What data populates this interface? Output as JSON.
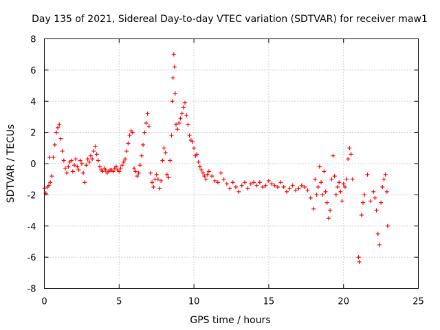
{
  "chart_data": {
    "type": "scatter",
    "title": "Day 135 of 2021, Sidereal Day-to-day VTEC variation (SDTVAR) for receiver maw1",
    "xlabel": "GPS time / hours",
    "ylabel": "SDTVAR / TECUs",
    "xlim": [
      0,
      25
    ],
    "ylim": [
      -8,
      8
    ],
    "x_ticks": [
      0,
      5,
      10,
      15,
      20,
      25
    ],
    "x_tick_labels": [
      "0",
      "5",
      "10",
      "15",
      "20",
      "25"
    ],
    "y_ticks": [
      -8,
      -6,
      -4,
      -2,
      0,
      2,
      4,
      6,
      8
    ],
    "y_tick_labels": [
      "-8",
      "-6",
      "-4",
      "-2",
      "0",
      "2",
      "4",
      "6",
      "8"
    ],
    "grid": true,
    "marker": "+",
    "color": "#ff0000",
    "series": [
      {
        "name": "maw1",
        "points": [
          [
            0.0,
            -1.6
          ],
          [
            0.1,
            -1.9
          ],
          [
            0.2,
            -1.5
          ],
          [
            0.3,
            -1.4
          ],
          [
            0.35,
            0.4
          ],
          [
            0.4,
            -1.2
          ],
          [
            0.5,
            -0.8
          ],
          [
            0.6,
            0.4
          ],
          [
            0.7,
            1.2
          ],
          [
            0.8,
            2.0
          ],
          [
            0.9,
            2.3
          ],
          [
            1.0,
            2.5
          ],
          [
            1.1,
            1.6
          ],
          [
            1.2,
            0.8
          ],
          [
            1.3,
            0.2
          ],
          [
            1.4,
            -0.3
          ],
          [
            1.5,
            -0.6
          ],
          [
            1.6,
            -0.2
          ],
          [
            1.7,
            0.1
          ],
          [
            1.8,
            0.2
          ],
          [
            1.9,
            -0.5
          ],
          [
            2.0,
            -0.1
          ],
          [
            2.1,
            0.3
          ],
          [
            2.2,
            -0.2
          ],
          [
            2.3,
            -0.4
          ],
          [
            2.4,
            0.2
          ],
          [
            2.5,
            0.0
          ],
          [
            2.6,
            -0.6
          ],
          [
            2.7,
            -1.2
          ],
          [
            2.8,
            -0.1
          ],
          [
            2.9,
            0.3
          ],
          [
            3.0,
            0.1
          ],
          [
            3.1,
            0.5
          ],
          [
            3.2,
            0.3
          ],
          [
            3.3,
            0.8
          ],
          [
            3.4,
            1.1
          ],
          [
            3.5,
            0.6
          ],
          [
            3.6,
            0.2
          ],
          [
            3.7,
            -0.2
          ],
          [
            3.8,
            -0.4
          ],
          [
            3.9,
            -0.5
          ],
          [
            4.0,
            -0.3
          ],
          [
            4.1,
            -0.4
          ],
          [
            4.2,
            -0.6
          ],
          [
            4.3,
            -0.5
          ],
          [
            4.4,
            -0.4
          ],
          [
            4.5,
            -0.4
          ],
          [
            4.6,
            -0.5
          ],
          [
            4.7,
            -0.3
          ],
          [
            4.8,
            -0.2
          ],
          [
            4.9,
            -0.4
          ],
          [
            5.0,
            -0.5
          ],
          [
            5.1,
            -0.3
          ],
          [
            5.2,
            -0.1
          ],
          [
            5.3,
            0.1
          ],
          [
            5.4,
            0.3
          ],
          [
            5.5,
            0.8
          ],
          [
            5.6,
            1.3
          ],
          [
            5.7,
            1.8
          ],
          [
            5.8,
            2.1
          ],
          [
            5.9,
            2.0
          ],
          [
            6.0,
            -0.3
          ],
          [
            6.1,
            -0.5
          ],
          [
            6.2,
            -0.8
          ],
          [
            6.3,
            -0.6
          ],
          [
            6.4,
            -0.1
          ],
          [
            6.5,
            0.5
          ],
          [
            6.6,
            1.2
          ],
          [
            6.7,
            2.0
          ],
          [
            6.8,
            2.6
          ],
          [
            6.9,
            3.2
          ],
          [
            7.0,
            2.4
          ],
          [
            7.1,
            -0.6
          ],
          [
            7.2,
            -1.2
          ],
          [
            7.3,
            -1.5
          ],
          [
            7.4,
            -1.0
          ],
          [
            7.5,
            -0.7
          ],
          [
            7.6,
            -1.0
          ],
          [
            7.7,
            -1.6
          ],
          [
            7.8,
            -1.1
          ],
          [
            7.9,
            0.2
          ],
          [
            8.0,
            1.0
          ],
          [
            8.1,
            0.7
          ],
          [
            8.2,
            -0.7
          ],
          [
            8.3,
            -0.9
          ],
          [
            8.4,
            0.2
          ],
          [
            8.5,
            1.8
          ],
          [
            8.55,
            4.0
          ],
          [
            8.6,
            5.5
          ],
          [
            8.65,
            7.0
          ],
          [
            8.7,
            6.2
          ],
          [
            8.75,
            4.5
          ],
          [
            8.8,
            2.5
          ],
          [
            8.9,
            2.2
          ],
          [
            9.0,
            2.6
          ],
          [
            9.1,
            2.9
          ],
          [
            9.2,
            3.2
          ],
          [
            9.3,
            3.6
          ],
          [
            9.4,
            3.9
          ],
          [
            9.5,
            3.1
          ],
          [
            9.6,
            2.5
          ],
          [
            9.7,
            1.8
          ],
          [
            9.8,
            1.5
          ],
          [
            9.9,
            1.4
          ],
          [
            10.0,
            1.0
          ],
          [
            10.1,
            0.5
          ],
          [
            10.2,
            0.6
          ],
          [
            10.3,
            0.1
          ],
          [
            10.4,
            -0.2
          ],
          [
            10.5,
            -0.4
          ],
          [
            10.6,
            -0.6
          ],
          [
            10.7,
            -0.8
          ],
          [
            10.8,
            -1.0
          ],
          [
            10.9,
            -0.7
          ],
          [
            11.0,
            -0.5
          ],
          [
            11.2,
            -0.8
          ],
          [
            11.4,
            -1.1
          ],
          [
            11.6,
            -1.2
          ],
          [
            11.8,
            -0.6
          ],
          [
            12.0,
            -1.0
          ],
          [
            12.2,
            -1.3
          ],
          [
            12.4,
            -1.6
          ],
          [
            12.6,
            -1.2
          ],
          [
            12.8,
            -1.5
          ],
          [
            13.0,
            -1.8
          ],
          [
            13.2,
            -1.4
          ],
          [
            13.4,
            -1.2
          ],
          [
            13.6,
            -1.6
          ],
          [
            13.8,
            -1.3
          ],
          [
            14.0,
            -1.2
          ],
          [
            14.2,
            -1.4
          ],
          [
            14.4,
            -1.2
          ],
          [
            14.6,
            -1.5
          ],
          [
            14.8,
            -1.4
          ],
          [
            15.0,
            -1.1
          ],
          [
            15.2,
            -1.3
          ],
          [
            15.4,
            -1.4
          ],
          [
            15.6,
            -1.5
          ],
          [
            15.8,
            -1.2
          ],
          [
            16.0,
            -1.5
          ],
          [
            16.2,
            -1.8
          ],
          [
            16.4,
            -1.6
          ],
          [
            16.6,
            -1.4
          ],
          [
            16.8,
            -1.7
          ],
          [
            17.0,
            -1.6
          ],
          [
            17.2,
            -1.4
          ],
          [
            17.4,
            -1.5
          ],
          [
            17.6,
            -1.7
          ],
          [
            17.8,
            -2.2
          ],
          [
            18.0,
            -2.9
          ],
          [
            18.1,
            -1.0
          ],
          [
            18.2,
            -2.0
          ],
          [
            18.3,
            -1.5
          ],
          [
            18.4,
            -0.2
          ],
          [
            18.5,
            -1.2
          ],
          [
            18.6,
            -2.0
          ],
          [
            18.7,
            -0.5
          ],
          [
            18.8,
            -1.8
          ],
          [
            18.9,
            -2.5
          ],
          [
            19.0,
            -3.5
          ],
          [
            19.1,
            -3.0
          ],
          [
            19.2,
            -1.0
          ],
          [
            19.3,
            0.5
          ],
          [
            19.4,
            -0.8
          ],
          [
            19.5,
            -2.0
          ],
          [
            19.6,
            -1.5
          ],
          [
            19.7,
            -1.2
          ],
          [
            19.8,
            -1.8
          ],
          [
            19.9,
            -2.4
          ],
          [
            20.0,
            -1.3
          ],
          [
            20.1,
            -1.5
          ],
          [
            20.2,
            -1.0
          ],
          [
            20.3,
            0.3
          ],
          [
            20.4,
            1.0
          ],
          [
            20.5,
            0.6
          ],
          [
            20.6,
            -1.0
          ],
          [
            21.0,
            -6.0
          ],
          [
            21.05,
            -6.3
          ],
          [
            21.2,
            -3.3
          ],
          [
            21.3,
            -2.5
          ],
          [
            21.4,
            -2.0
          ],
          [
            21.6,
            -0.7
          ],
          [
            21.8,
            -2.4
          ],
          [
            22.0,
            -1.8
          ],
          [
            22.1,
            -2.2
          ],
          [
            22.2,
            -3.0
          ],
          [
            22.3,
            -4.5
          ],
          [
            22.4,
            -5.2
          ],
          [
            22.5,
            -2.5
          ],
          [
            22.6,
            -1.5
          ],
          [
            22.7,
            -1.0
          ],
          [
            22.8,
            -0.7
          ],
          [
            22.9,
            -1.8
          ],
          [
            22.95,
            -4.0
          ]
        ]
      }
    ]
  }
}
